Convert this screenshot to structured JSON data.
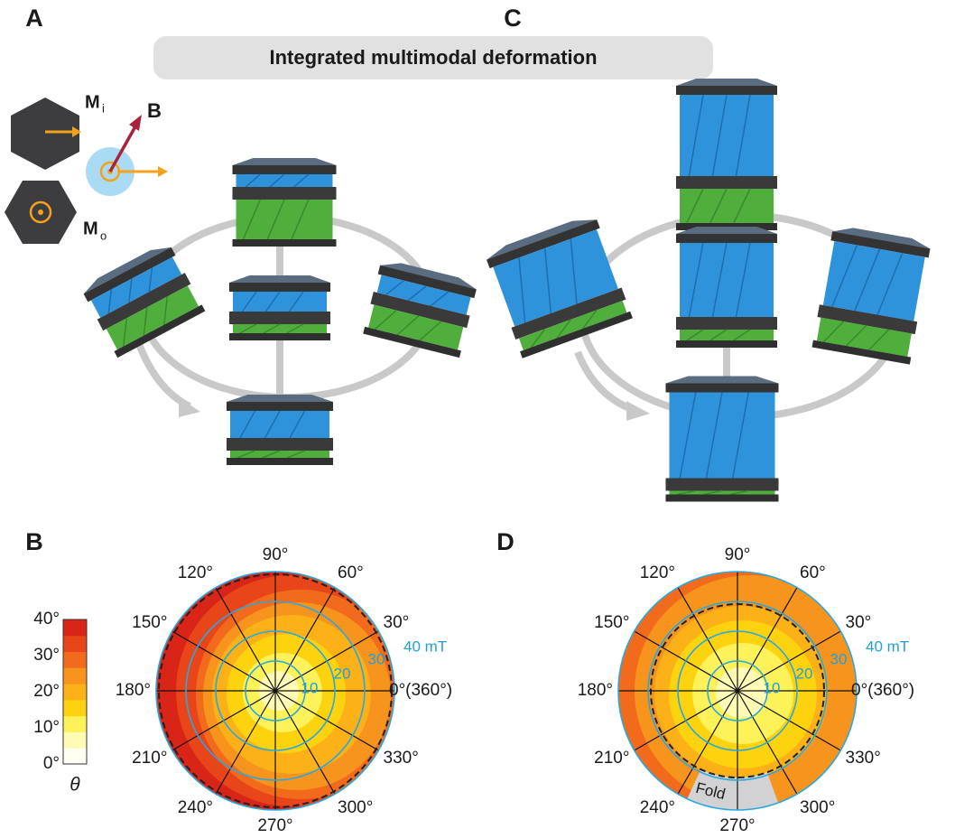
{
  "panel_labels": [
    "A",
    "B",
    "C",
    "D"
  ],
  "banner": "Integrated multimodal deformation",
  "legend": {
    "magnet_in_plane": {
      "symbol": "M",
      "subscript": "i"
    },
    "magnet_out_of_plane": {
      "symbol": "M",
      "subscript": "o"
    },
    "field": "B"
  },
  "colorbar": {
    "ticks": [
      "0°",
      "10°",
      "20°",
      "30°",
      "40°"
    ],
    "label": "θ"
  },
  "polar_plots": [
    {
      "angle_labels": [
        "0°(360°)",
        "30°",
        "60°",
        "90°",
        "120°",
        "150°",
        "180°",
        "210°",
        "240°",
        "270°",
        "300°",
        "330°"
      ],
      "ring_labels": [
        "10",
        "20",
        "30",
        "40 mT"
      ]
    },
    {
      "angle_labels": [
        "0°(360°)",
        "30°",
        "60°",
        "90°",
        "120°",
        "150°",
        "180°",
        "210°",
        "240°",
        "270°",
        "300°",
        "330°"
      ],
      "ring_labels": [
        "10",
        "20",
        "30",
        "40 mT"
      ],
      "annotation": "Fold"
    }
  ]
}
